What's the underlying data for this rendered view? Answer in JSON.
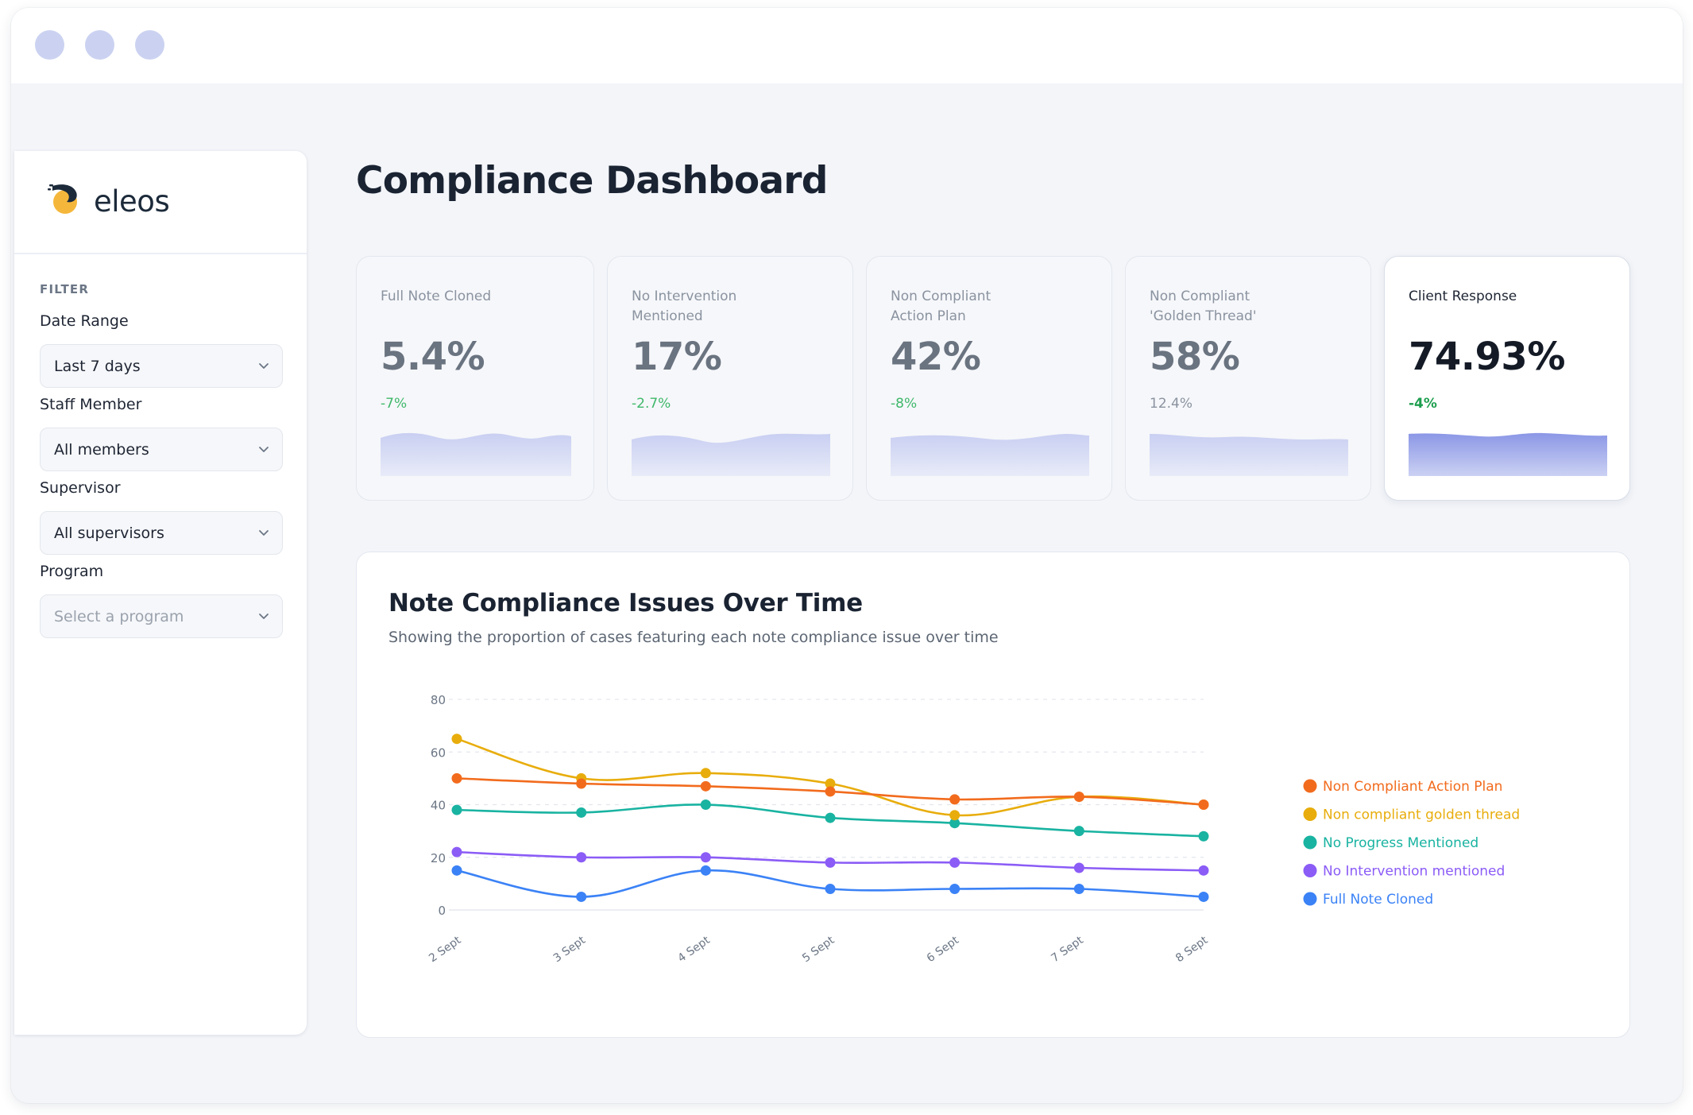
{
  "window": {
    "controls": [
      "window-dot",
      "window-dot",
      "window-dot"
    ],
    "control_color": "#cbd2f1"
  },
  "sidebar": {
    "logo_text": "eleos",
    "filter_heading": "FILTER",
    "filters": [
      {
        "label": "Date Range",
        "value": "Last 7 days",
        "is_placeholder": false
      },
      {
        "label": "Staff Member",
        "value": "All members",
        "is_placeholder": false
      },
      {
        "label": "Supervisor",
        "value": "All supervisors",
        "is_placeholder": false
      },
      {
        "label": "Program",
        "value": "Select a program",
        "is_placeholder": true
      }
    ]
  },
  "page": {
    "title": "Compliance Dashboard"
  },
  "metrics": [
    {
      "label": "Full Note Cloned",
      "value": "5.4%",
      "delta": "-7%",
      "delta_color": "#3fb86b",
      "active": false
    },
    {
      "label": "No Intervention Mentioned",
      "value": "17%",
      "delta": "-2.7%",
      "delta_color": "#3fb86b",
      "active": false
    },
    {
      "label": "Non Compliant Action Plan",
      "value": "42%",
      "delta": "-8%",
      "delta_color": "#3fb86b",
      "active": false
    },
    {
      "label": "Non Compliant 'Golden Thread'",
      "value": "58%",
      "delta": "12.4%",
      "delta_color": "#8a93a0",
      "active": false
    },
    {
      "label": "Client Response",
      "value": "74.93%",
      "delta": "-4%",
      "delta_color": "#1e9e4f",
      "active": true
    }
  ],
  "chart": {
    "title": "Note Compliance Issues Over Time",
    "subtitle": "Showing the proportion of cases featuring each note compliance issue over time"
  },
  "chart_data": {
    "type": "line",
    "categories": [
      "2 Sept",
      "3 Sept",
      "4 Sept",
      "5 Sept",
      "6 Sept",
      "7 Sept",
      "8 Sept"
    ],
    "ylim": [
      0,
      80
    ],
    "yticks": [
      0,
      20,
      40,
      60,
      80
    ],
    "grid": true,
    "legend_position": "right",
    "series": [
      {
        "name": "Non Compliant Action Plan",
        "color": "#f26b1d",
        "values": [
          50,
          48,
          47,
          45,
          42,
          43,
          40
        ]
      },
      {
        "name": "Non compliant golden thread",
        "color": "#e8ad0c",
        "values": [
          65,
          50,
          52,
          48,
          36,
          43,
          40
        ]
      },
      {
        "name": "No Progress Mentioned",
        "color": "#19b3a1",
        "values": [
          38,
          37,
          40,
          35,
          33,
          30,
          28
        ]
      },
      {
        "name": "No Intervention mentioned",
        "color": "#8b5cf6",
        "values": [
          22,
          20,
          20,
          18,
          18,
          16,
          15
        ]
      },
      {
        "name": "Full Note Cloned",
        "color": "#3b82f6",
        "values": [
          15,
          5,
          15,
          8,
          8,
          8,
          5
        ]
      }
    ]
  }
}
